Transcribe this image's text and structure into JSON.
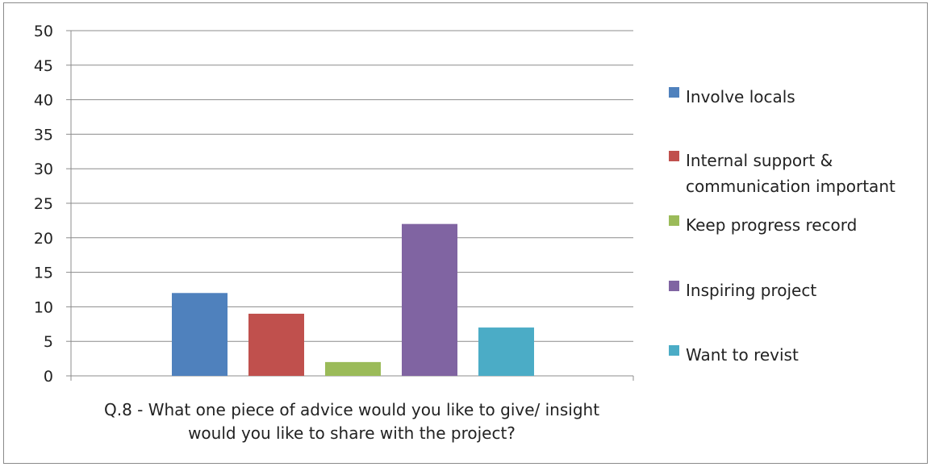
{
  "chart_data": {
    "type": "bar",
    "categories": [
      "Involve locals",
      "Internal support & communication important",
      "Keep progress record",
      "Inspiring project",
      "Want to revist"
    ],
    "values": [
      12,
      9,
      2,
      22,
      7
    ],
    "colors": [
      "#4f81bd",
      "#c0504d",
      "#9bbb59",
      "#8064a2",
      "#4bacc6"
    ],
    "legend": {
      "position": "right",
      "items": [
        {
          "lines": [
            "Involve locals"
          ],
          "color": "#4f81bd"
        },
        {
          "lines": [
            "Internal support &",
            "communication important"
          ],
          "color": "#c0504d"
        },
        {
          "lines": [
            " Keep progress record"
          ],
          "color": "#9bbb59"
        },
        {
          "lines": [
            "Inspiring project"
          ],
          "color": "#8064a2"
        },
        {
          "lines": [
            "Want to revist"
          ],
          "color": "#4bacc6"
        }
      ]
    },
    "xlabel_lines": [
      "Q.8  -  What one piece of advice would you like to give/ insight",
      "would you like to share with the project?"
    ],
    "ylabel": "",
    "ylim": [
      0,
      50
    ],
    "yticks": [
      0,
      5,
      10,
      15,
      20,
      25,
      30,
      35,
      40,
      45,
      50
    ],
    "grid": true
  }
}
